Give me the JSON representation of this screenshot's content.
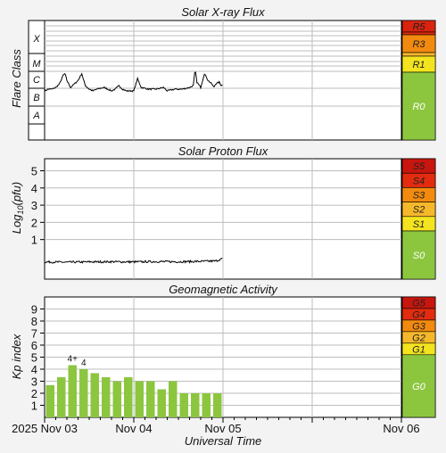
{
  "panels": {
    "xray": {
      "title": "Solar X-ray Flux",
      "ylabel": "Flare Class",
      "classes": [
        "X",
        "M",
        "C",
        "B",
        "A"
      ],
      "scale": [
        {
          "label": "R5",
          "color": "#d9230f"
        },
        {
          "label": "R4",
          "color": "#e22b0f"
        },
        {
          "label": "R3",
          "color": "#f28a0f"
        },
        {
          "label": "R2",
          "color": "#f5b82b"
        },
        {
          "label": "R1",
          "color": "#f3e41f"
        },
        {
          "label": "R0",
          "color": "#8cc63f"
        }
      ]
    },
    "proton": {
      "title": "Solar Proton Flux",
      "ylabel_main": "Log",
      "ylabel_sub": "10",
      "ylabel_tail": "(pfu)",
      "ticks": [
        "5",
        "4",
        "3",
        "2",
        "1"
      ],
      "scale": [
        {
          "label": "S5",
          "color": "#c8160f"
        },
        {
          "label": "S4",
          "color": "#e22b0f"
        },
        {
          "label": "S3",
          "color": "#f28a0f"
        },
        {
          "label": "S2",
          "color": "#f5b82b"
        },
        {
          "label": "S1",
          "color": "#f3e41f"
        },
        {
          "label": "S0",
          "color": "#8cc63f"
        }
      ]
    },
    "geomag": {
      "title": "Geomagnetic Activity",
      "ylabel": "Kp index",
      "ticks": [
        "9",
        "8",
        "7",
        "6",
        "5",
        "4",
        "3",
        "2",
        "1"
      ],
      "scale": [
        {
          "label": "G5",
          "color": "#c8160f"
        },
        {
          "label": "G4",
          "color": "#e22b0f"
        },
        {
          "label": "G3",
          "color": "#f28a0f"
        },
        {
          "label": "G2",
          "color": "#f5b82b"
        },
        {
          "label": "G1",
          "color": "#f3e41f"
        },
        {
          "label": "G0",
          "color": "#8cc63f"
        }
      ]
    }
  },
  "x_axis": {
    "title": "Universal Time",
    "ticks": [
      "2025 Nov 03",
      "Nov 04",
      "Nov 05",
      "Nov 06"
    ]
  },
  "chart_data": [
    {
      "type": "area",
      "title": "Solar X-ray Flux",
      "ylabel": "Flare Class",
      "yscale": "log flare class",
      "x_unit": "hours since 2025 Nov 03 00:00 UT",
      "x": [
        0,
        1,
        2,
        3,
        4,
        5,
        5.5,
        6,
        7,
        8,
        9,
        10,
        10.5,
        11,
        12,
        13,
        14,
        16,
        18,
        19,
        20,
        21,
        22,
        24,
        25,
        26,
        28,
        30,
        32,
        33,
        35,
        37,
        39,
        40,
        40.5,
        41,
        42,
        43,
        44,
        45,
        45.5,
        46,
        47,
        47.5,
        48
      ],
      "class_level": [
        2.9,
        3.0,
        3.0,
        3.1,
        3.3,
        3.8,
        3.9,
        3.5,
        3.1,
        3.3,
        3.5,
        3.9,
        3.5,
        3.2,
        3.0,
        2.9,
        3.0,
        3.1,
        2.9,
        3.0,
        3.2,
        3.0,
        2.9,
        2.9,
        3.6,
        3.1,
        3.0,
        3.0,
        3.1,
        2.9,
        3.0,
        3.0,
        3.1,
        3.2,
        4.1,
        3.4,
        3.1,
        3.9,
        3.5,
        3.3,
        3.1,
        3.3,
        3.4,
        3.2,
        3.3
      ]
    },
    {
      "type": "area",
      "title": "Solar Proton Flux",
      "ylabel": "Log10(pfu)",
      "x_unit": "hours since 2025 Nov 03 00:00 UT",
      "x": [
        0,
        6,
        12,
        18,
        24,
        30,
        36,
        42,
        46,
        48
      ],
      "values": [
        -0.3,
        -0.32,
        -0.3,
        -0.29,
        -0.3,
        -0.28,
        -0.29,
        -0.27,
        -0.25,
        -0.1
      ],
      "ylim": [
        -1.3,
        5.7
      ]
    },
    {
      "type": "bar",
      "title": "Geomagnetic Activity",
      "ylabel": "Kp index",
      "x_unit": "hours since 2025 Nov 03 00:00 UT",
      "bin_hours": 3,
      "x": [
        0,
        3,
        6,
        9,
        12,
        15,
        18,
        21,
        24,
        27,
        30,
        33,
        36,
        39,
        42,
        45
      ],
      "values": [
        2.67,
        3.33,
        4.33,
        4.0,
        3.67,
        3.33,
        3.0,
        3.33,
        3.0,
        3.0,
        2.33,
        3.0,
        2.0,
        2.0,
        2.0,
        2.0
      ],
      "data_labels": [
        null,
        null,
        "4+",
        "4",
        null,
        null,
        null,
        null,
        null,
        null,
        null,
        null,
        null,
        null,
        null,
        null
      ],
      "ylim": [
        0,
        10
      ]
    }
  ]
}
